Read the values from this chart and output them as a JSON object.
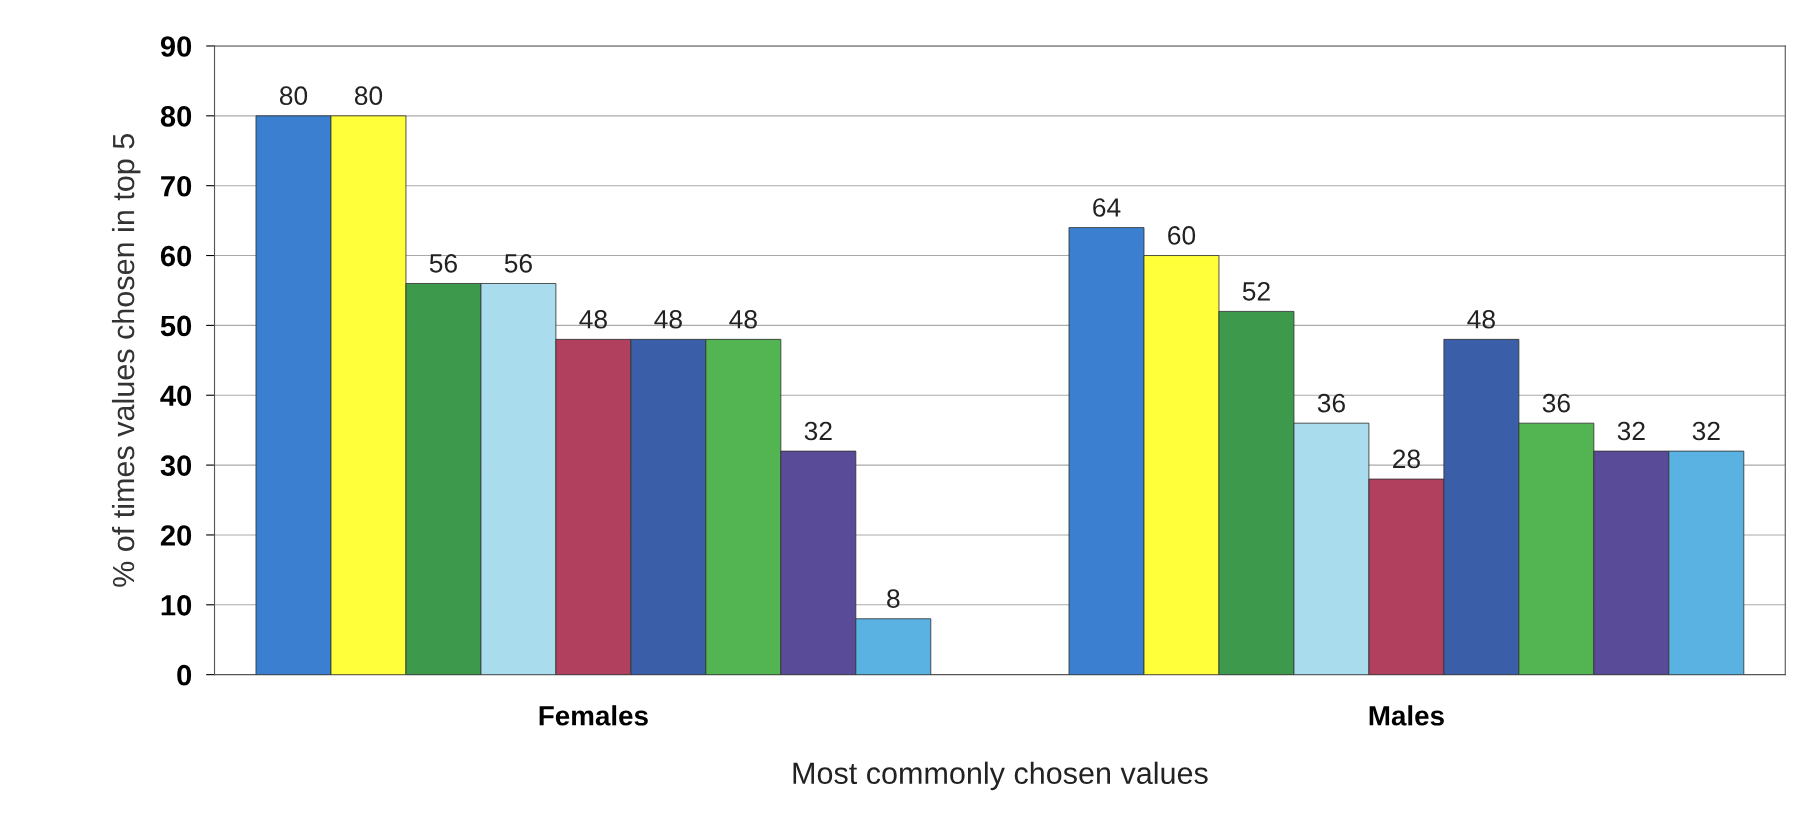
{
  "chart_data": {
    "type": "bar",
    "ylabel": "% of times values chosen in top 5",
    "xlabel": "Most commonly chosen values",
    "categories": [
      "Females",
      "Males"
    ],
    "series": [
      {
        "color": "#3b7fd0",
        "values": [
          80,
          64
        ]
      },
      {
        "color": "#ffff3a",
        "values": [
          80,
          60
        ]
      },
      {
        "color": "#3d9a4c",
        "values": [
          56,
          52
        ]
      },
      {
        "color": "#a9ddee",
        "values": [
          56,
          36
        ]
      },
      {
        "color": "#b0405e",
        "values": [
          48,
          28
        ]
      },
      {
        "color": "#3a5fa8",
        "values": [
          48,
          48
        ]
      },
      {
        "color": "#52b552",
        "values": [
          48,
          36
        ]
      },
      {
        "color": "#5a4b98",
        "values": [
          32,
          32
        ]
      },
      {
        "color": "#5ab2e2",
        "values": [
          8,
          32
        ]
      }
    ],
    "ylim": [
      0,
      90
    ],
    "yticks": [
      0,
      10,
      20,
      30,
      40,
      50,
      60,
      70,
      80,
      90
    ],
    "grid": "y",
    "data_labels": true
  }
}
